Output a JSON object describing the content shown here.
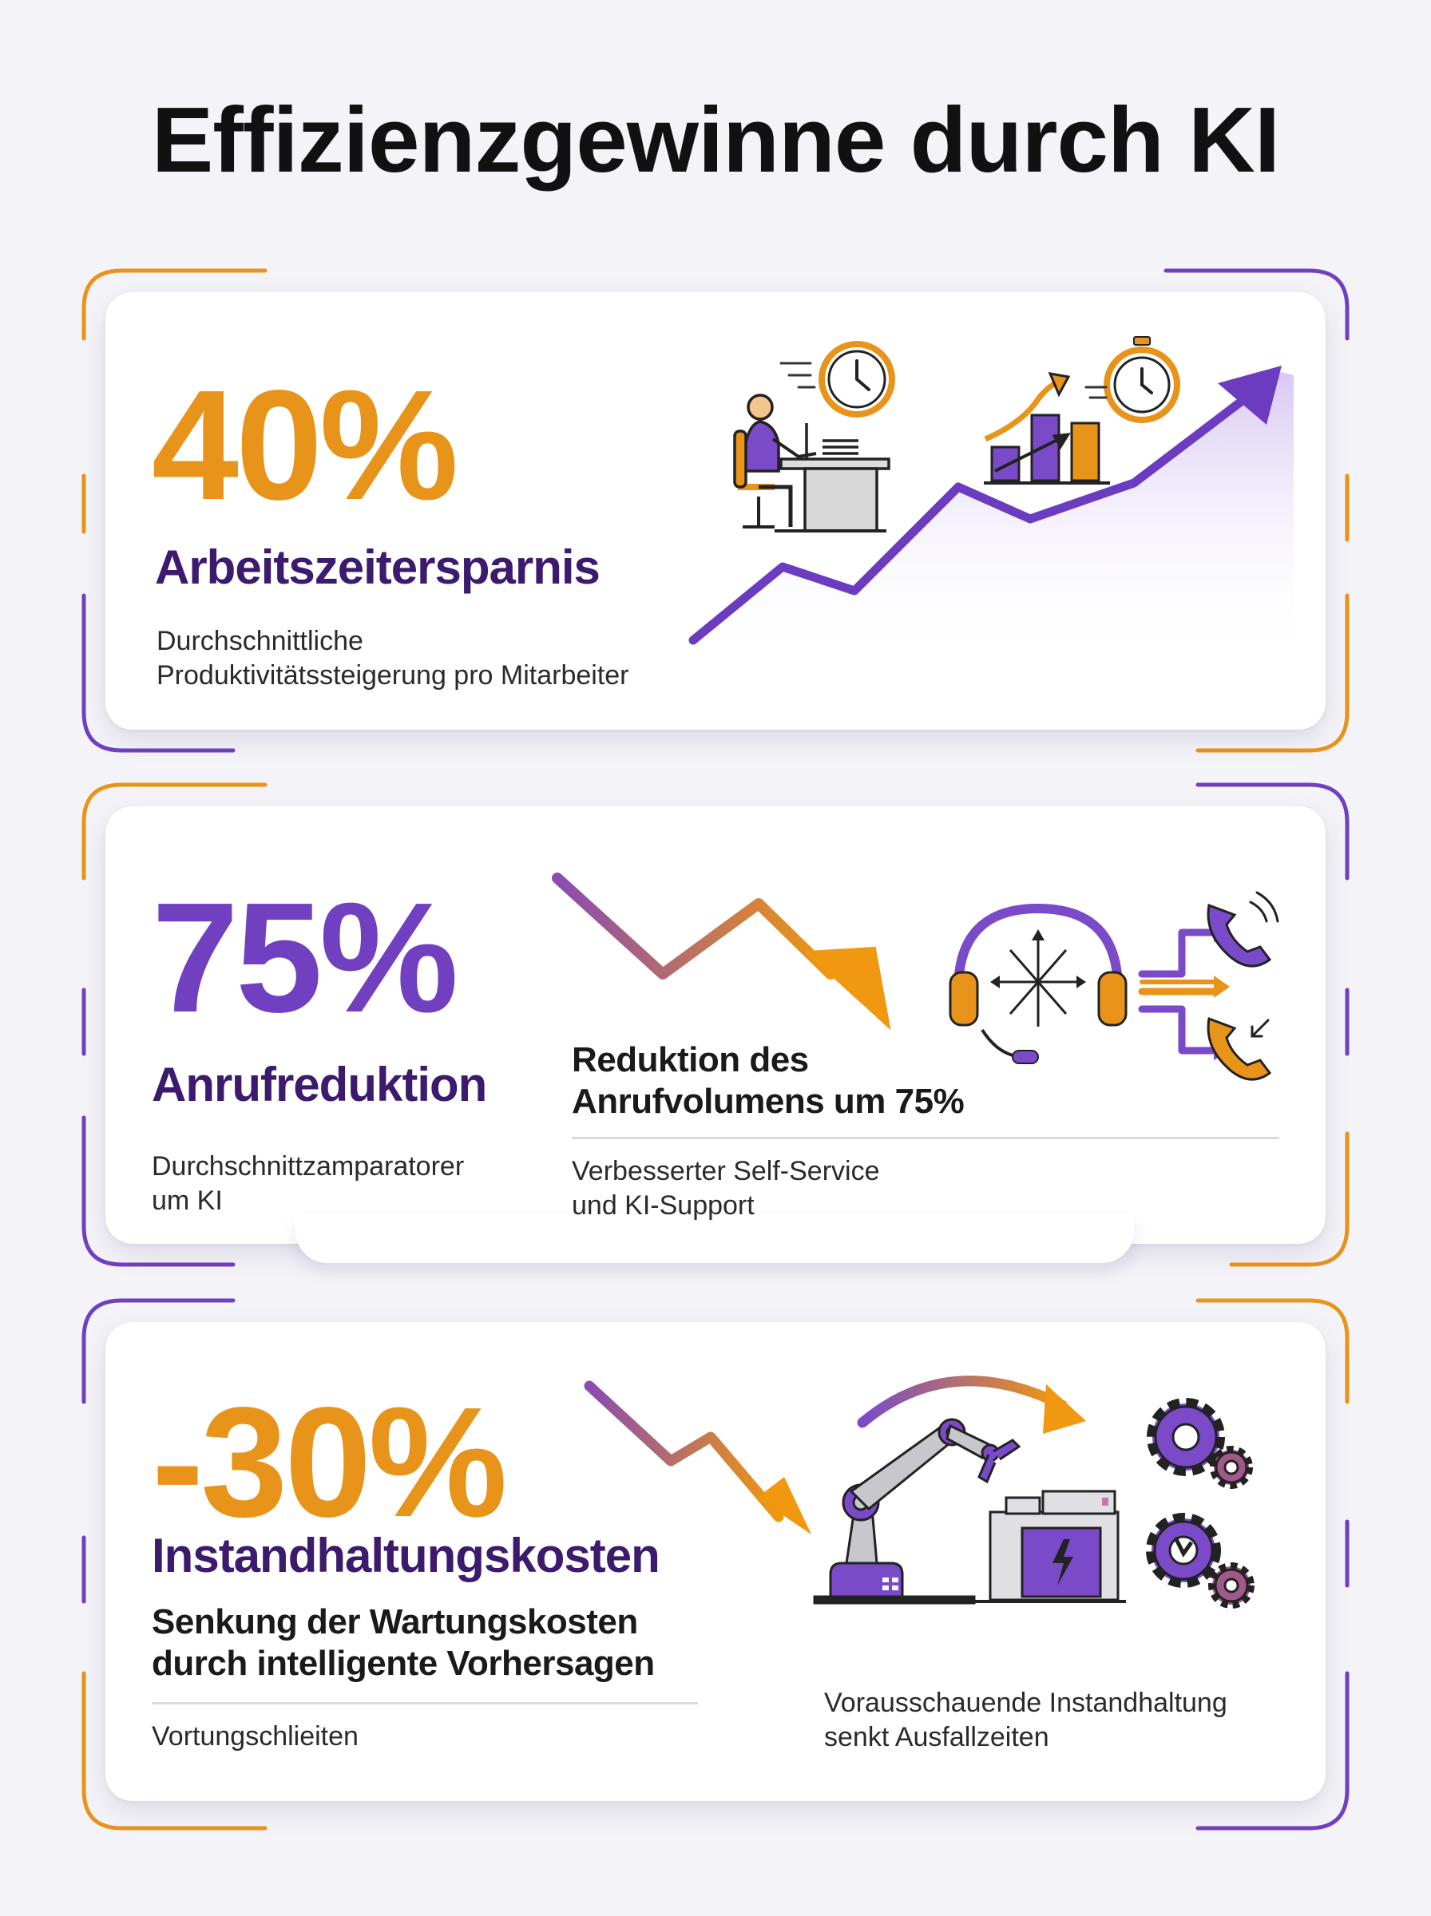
{
  "title": "Effizienzgewinne durch KI",
  "colors": {
    "orange": "#e8941a",
    "purple": "#7040c0",
    "dark_purple": "#3c1a6e",
    "background": "#f4f4f8"
  },
  "cards": [
    {
      "stat": "40%",
      "stat_color": "orange",
      "heading": "Arbeitszeitersparnis",
      "description_line1": "Durchschnittliche",
      "description_line2": "Produktivitätssteigerung pro Mitarbeiter",
      "icons": [
        "office-worker-icon",
        "clock-icon",
        "growth-bar-chart-icon",
        "stopwatch-icon",
        "rising-trend-arrow"
      ]
    },
    {
      "stat": "75%",
      "stat_color": "purple",
      "heading": "Anrufreduktion",
      "description_line1": "Durchschnittzamparatorer",
      "description_line2": "um KI",
      "detail_title_line1": "Reduktion des",
      "detail_title_line2": "Anrufvolumens um 75%",
      "detail_text_line1": "Verbesserter Self-Service",
      "detail_text_line2": "und KI-Support",
      "icons": [
        "falling-trend-arrow",
        "headset-routing-icon",
        "phone-incoming-icon",
        "phone-outgoing-icon"
      ]
    },
    {
      "stat": "-30%",
      "stat_color": "orange",
      "heading": "Instandhaltungskosten",
      "bold_line1": "Senkung der Wartungskosten",
      "bold_line2": "durch intelligente Vorhersagen",
      "description": "Vortungschlieiten",
      "detail_text_line1": "Vorausschauende Instandhaltung",
      "detail_text_line2": "senkt Ausfallzeiten",
      "icons": [
        "falling-trend-arrow",
        "robot-arm-icon",
        "machine-icon",
        "gear-icon",
        "gear-repair-icon"
      ]
    }
  ]
}
